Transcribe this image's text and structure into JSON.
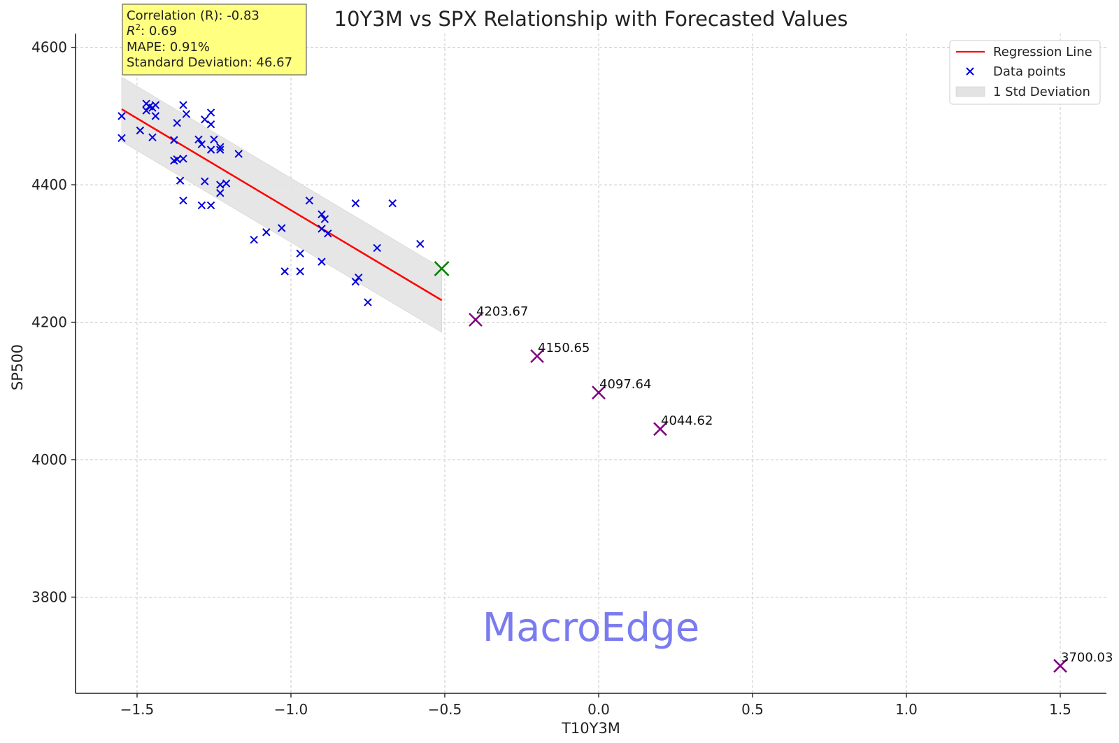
{
  "chart_data": {
    "type": "scatter",
    "title": "10Y3M vs SPX Relationship with Forecasted Values",
    "xlabel": "T10Y3M",
    "ylabel": "SP500",
    "xlim": [
      -1.7,
      1.65
    ],
    "ylim": [
      3660,
      4620
    ],
    "xticks": [
      -1.5,
      -1.0,
      -0.5,
      0.0,
      0.5,
      1.0,
      1.5
    ],
    "xtick_labels": [
      "−1.5",
      "−1.0",
      "−0.5",
      "0.0",
      "0.5",
      "1.0",
      "1.5"
    ],
    "yticks": [
      3800,
      4000,
      4200,
      4400,
      4600
    ],
    "ytick_labels": [
      "3800",
      "4000",
      "4200",
      "4400",
      "4600"
    ],
    "grid": true,
    "legend_position": "top-right",
    "legend": [
      "Regression Line",
      "Data points",
      "1 Std Deviation"
    ],
    "colors": {
      "regression": "#ff0000",
      "data_points": "#0000dd",
      "band": "#e3e3e3",
      "current_point": "#008000",
      "forecast": "#800080",
      "stats_box": "#ffff80",
      "stats_border": "#666666"
    },
    "regression_line": {
      "x": [
        -1.55,
        -0.51
      ],
      "y": [
        4510,
        4232
      ]
    },
    "std_band": {
      "std": 46.67
    },
    "data_points": [
      {
        "x": -1.55,
        "y": 4500
      },
      {
        "x": -1.55,
        "y": 4468
      },
      {
        "x": -1.49,
        "y": 4479
      },
      {
        "x": -1.47,
        "y": 4518
      },
      {
        "x": -1.47,
        "y": 4508
      },
      {
        "x": -1.46,
        "y": 4514
      },
      {
        "x": -1.45,
        "y": 4512
      },
      {
        "x": -1.44,
        "y": 4516
      },
      {
        "x": -1.44,
        "y": 4500
      },
      {
        "x": -1.45,
        "y": 4469
      },
      {
        "x": -1.38,
        "y": 4465
      },
      {
        "x": -1.38,
        "y": 4435
      },
      {
        "x": -1.37,
        "y": 4437
      },
      {
        "x": -1.37,
        "y": 4490
      },
      {
        "x": -1.35,
        "y": 4516
      },
      {
        "x": -1.34,
        "y": 4503
      },
      {
        "x": -1.35,
        "y": 4438
      },
      {
        "x": -1.36,
        "y": 4406
      },
      {
        "x": -1.35,
        "y": 4377
      },
      {
        "x": -1.3,
        "y": 4466
      },
      {
        "x": -1.29,
        "y": 4459
      },
      {
        "x": -1.28,
        "y": 4495
      },
      {
        "x": -1.26,
        "y": 4505
      },
      {
        "x": -1.26,
        "y": 4488
      },
      {
        "x": -1.25,
        "y": 4466
      },
      {
        "x": -1.26,
        "y": 4451
      },
      {
        "x": -1.23,
        "y": 4455
      },
      {
        "x": -1.23,
        "y": 4451
      },
      {
        "x": -1.28,
        "y": 4405
      },
      {
        "x": -1.29,
        "y": 4370
      },
      {
        "x": -1.26,
        "y": 4370
      },
      {
        "x": -1.23,
        "y": 4400
      },
      {
        "x": -1.23,
        "y": 4388
      },
      {
        "x": -1.21,
        "y": 4402
      },
      {
        "x": -1.17,
        "y": 4445
      },
      {
        "x": -1.12,
        "y": 4320
      },
      {
        "x": -1.08,
        "y": 4331
      },
      {
        "x": -1.03,
        "y": 4337
      },
      {
        "x": -1.02,
        "y": 4274
      },
      {
        "x": -0.97,
        "y": 4300
      },
      {
        "x": -0.97,
        "y": 4274
      },
      {
        "x": -0.94,
        "y": 4377
      },
      {
        "x": -0.9,
        "y": 4357
      },
      {
        "x": -0.89,
        "y": 4350
      },
      {
        "x": -0.9,
        "y": 4336
      },
      {
        "x": -0.88,
        "y": 4329
      },
      {
        "x": -0.9,
        "y": 4288
      },
      {
        "x": -0.79,
        "y": 4373
      },
      {
        "x": -0.72,
        "y": 4308
      },
      {
        "x": -0.67,
        "y": 4373
      },
      {
        "x": -0.58,
        "y": 4314
      },
      {
        "x": -0.78,
        "y": 4265
      },
      {
        "x": -0.79,
        "y": 4259
      },
      {
        "x": -0.75,
        "y": 4229
      }
    ],
    "current_point": {
      "x": -0.51,
      "y": 4278
    },
    "forecast_points": [
      {
        "x": -0.4,
        "y": 4203.67,
        "label": "4203.67"
      },
      {
        "x": -0.2,
        "y": 4150.65,
        "label": "4150.65"
      },
      {
        "x": 0.0,
        "y": 4097.64,
        "label": "4097.64"
      },
      {
        "x": 0.2,
        "y": 4044.62,
        "label": "4044.62"
      },
      {
        "x": 1.5,
        "y": 3700.03,
        "label": "3700.03"
      }
    ]
  },
  "stats_box": {
    "correlation": "Correlation (R): -0.83",
    "r2_sym": "R",
    "r2_sup": "2",
    "r2_value": ": 0.69",
    "mape": "MAPE: 0.91%",
    "std": "Standard Deviation: 46.67"
  },
  "watermark": "MacroEdge"
}
